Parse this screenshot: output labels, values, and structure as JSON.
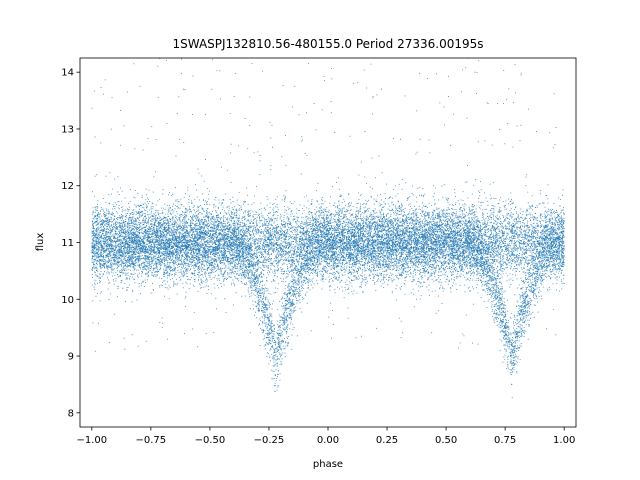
{
  "chart_data": {
    "type": "scatter",
    "title": "1SWASPJ132810.56-480155.0 Period 27336.00195s",
    "xlabel": "phase",
    "ylabel": "flux",
    "xlim": [
      -1.05,
      1.05
    ],
    "ylim": [
      7.75,
      14.25
    ],
    "xticks": [
      -1.0,
      -0.75,
      -0.5,
      -0.25,
      0.0,
      0.25,
      0.5,
      0.75,
      1.0
    ],
    "xtick_labels": [
      "−1.00",
      "−0.75",
      "−0.50",
      "−0.25",
      "0.00",
      "0.25",
      "0.50",
      "0.75",
      "1.00"
    ],
    "yticks": [
      8,
      9,
      10,
      11,
      12,
      13,
      14
    ],
    "ytick_labels": [
      "8",
      "9",
      "10",
      "11",
      "12",
      "13",
      "14"
    ],
    "grid": false,
    "point_color": "#1f77b4",
    "phase_range": [
      -1.0,
      1.0
    ],
    "baseline_flux": 11.0,
    "eclipses": [
      {
        "center_phase": -0.22,
        "min_flux": 9.0
      },
      {
        "center_phase": 0.78,
        "min_flux": 9.0
      }
    ]
  }
}
